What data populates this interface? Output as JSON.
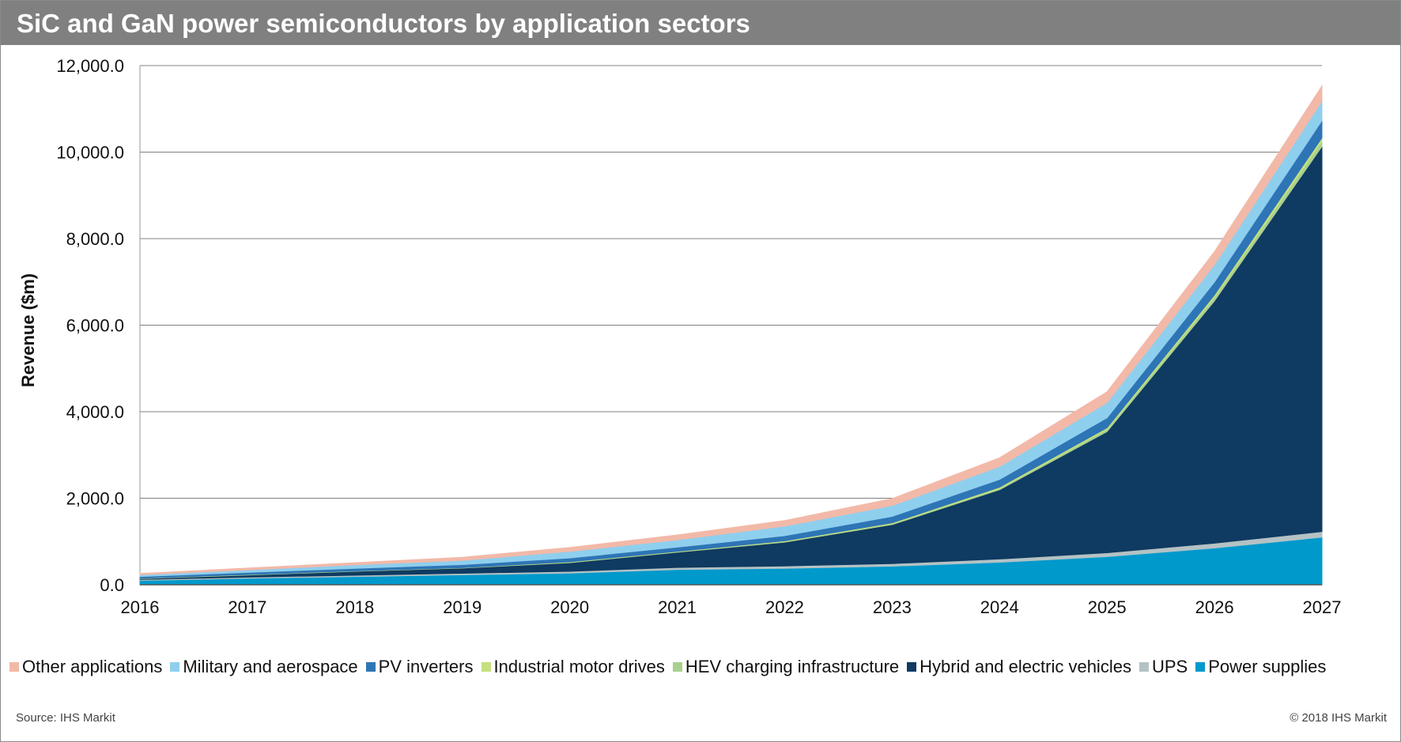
{
  "header": {
    "title": "SiC and GaN power semiconductors by application sectors"
  },
  "footer": {
    "source": "Source: IHS Markit",
    "copyright": "© 2018 IHS Markit"
  },
  "colors": {
    "title_bar": "#808080",
    "grid": "#808080"
  },
  "chart_data": {
    "type": "area",
    "stacked": true,
    "ylabel": "Revenue ($m)",
    "xlabel": "",
    "ylim": [
      0,
      12000
    ],
    "y_ticks": [
      "0.0",
      "2,000.0",
      "4,000.0",
      "6,000.0",
      "8,000.0",
      "10,000.0",
      "12,000.0"
    ],
    "y_tick_values": [
      0,
      2000,
      4000,
      6000,
      8000,
      10000,
      12000
    ],
    "grid": true,
    "legend_position": "bottom",
    "x": [
      "2016",
      "2017",
      "2018",
      "2019",
      "2020",
      "2021",
      "2022",
      "2023",
      "2024",
      "2025",
      "2026",
      "2027"
    ],
    "series": [
      {
        "name": "Power supplies",
        "color": "#0099cc",
        "values": [
          100,
          150,
          190,
          230,
          270,
          350,
          380,
          430,
          520,
          650,
          850,
          1100
        ]
      },
      {
        "name": "UPS",
        "color": "#b4c2c4",
        "values": [
          20,
          25,
          30,
          35,
          40,
          50,
          55,
          60,
          75,
          90,
          110,
          130
        ]
      },
      {
        "name": "Hybrid and electric vehicles",
        "color": "#0f3a61",
        "values": [
          20,
          50,
          90,
          120,
          200,
          350,
          550,
          900,
          1600,
          2800,
          5600,
          8900
        ]
      },
      {
        "name": "HEV charging infrastructure",
        "color": "#a9d08e",
        "values": [
          5,
          5,
          5,
          5,
          10,
          10,
          15,
          20,
          30,
          50,
          80,
          120
        ]
      },
      {
        "name": "Industrial motor drives",
        "color": "#c5e07e",
        "values": [
          5,
          5,
          5,
          5,
          10,
          10,
          15,
          20,
          30,
          40,
          60,
          80
        ]
      },
      {
        "name": "PV inverters",
        "color": "#2e75b6",
        "values": [
          40,
          50,
          60,
          70,
          90,
          100,
          120,
          150,
          180,
          230,
          300,
          400
        ]
      },
      {
        "name": "Military and aerospace",
        "color": "#8fcfee",
        "values": [
          40,
          60,
          80,
          100,
          150,
          170,
          220,
          250,
          300,
          350,
          400,
          450
        ]
      },
      {
        "name": "Other applications",
        "color": "#f2b9a8",
        "values": [
          30,
          40,
          50,
          70,
          90,
          110,
          130,
          160,
          200,
          250,
          300,
          350
        ]
      }
    ]
  }
}
